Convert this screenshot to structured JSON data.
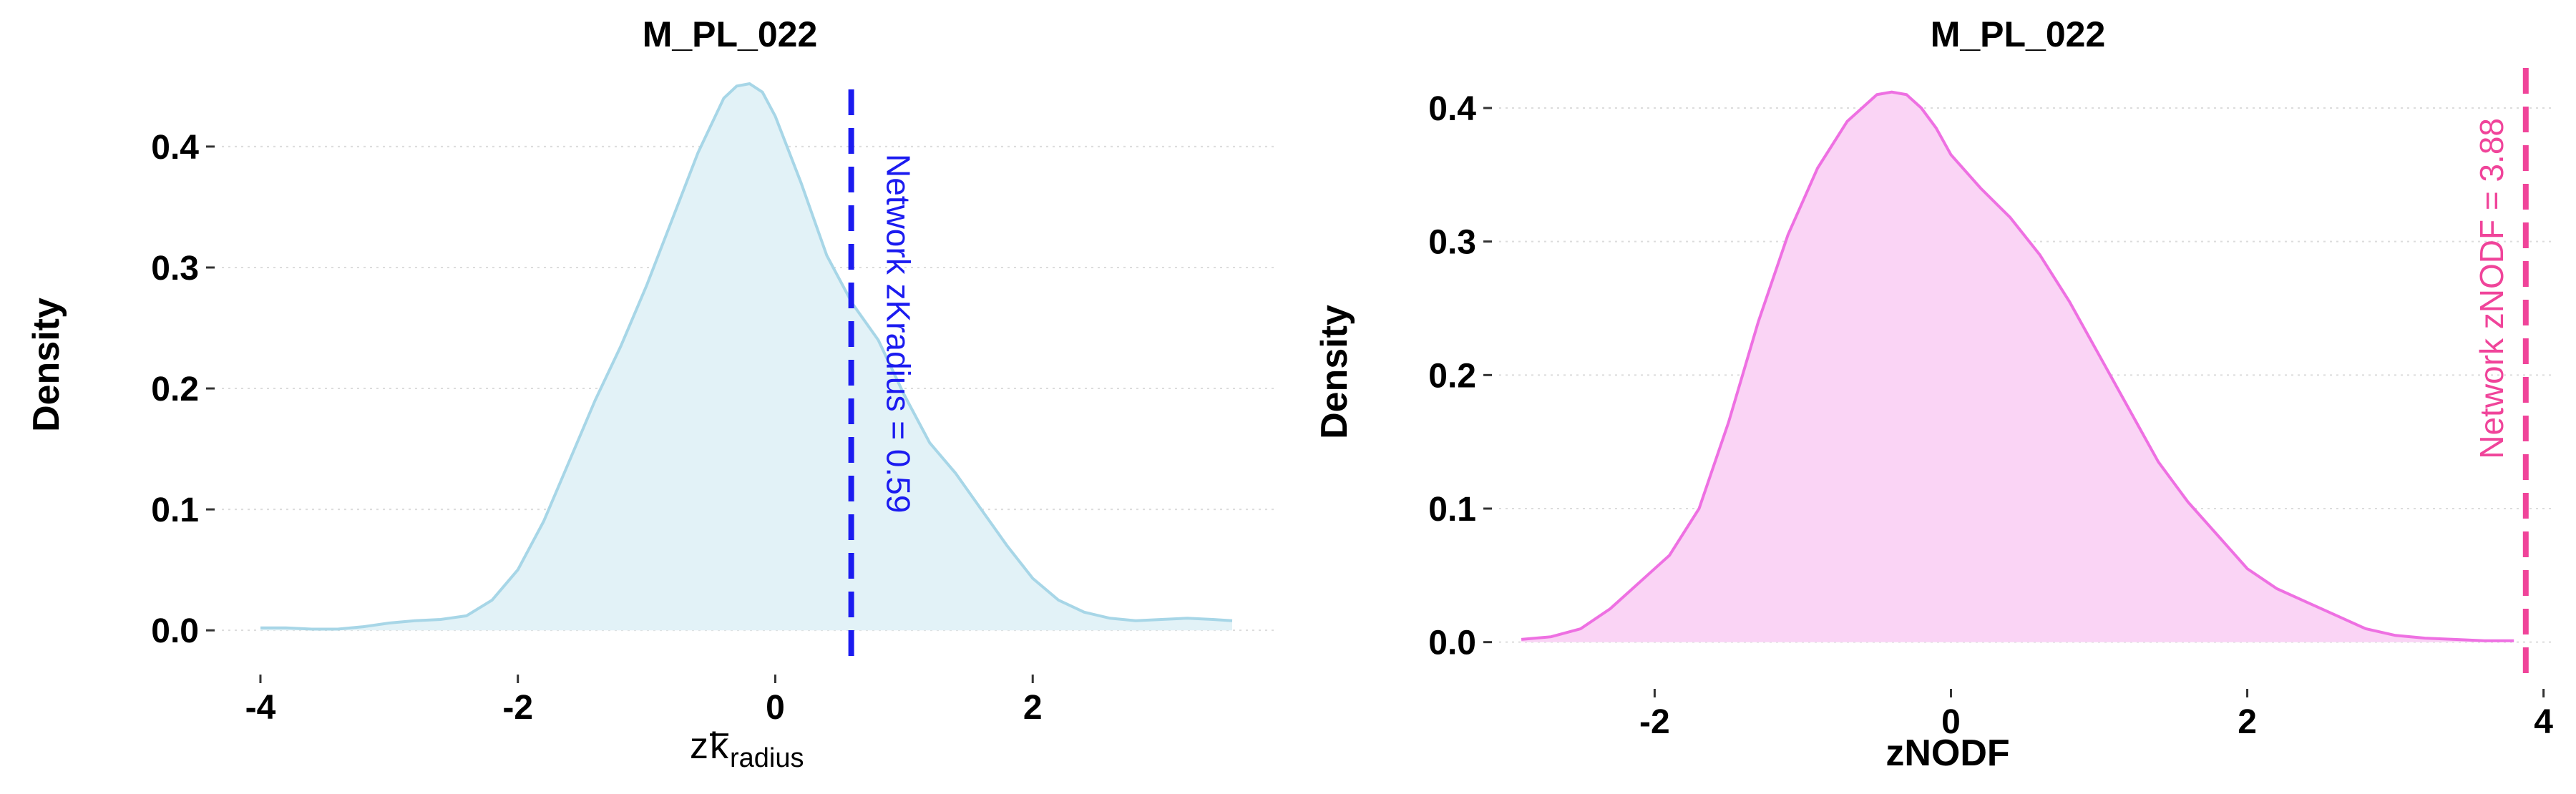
{
  "chart_data": [
    {
      "type": "area",
      "title": "M_PL_022",
      "ylabel": "Density",
      "xlabel": {
        "main": "z ",
        "overbar": "k",
        "subscript": "radius"
      },
      "xlim": [
        -4.3,
        3.9
      ],
      "ylim": [
        -0.02,
        0.465
      ],
      "xticks": [
        -4,
        -2,
        0,
        2
      ],
      "yticks": [
        0.0,
        0.1,
        0.2,
        0.3,
        0.4
      ],
      "x": [
        -4.0,
        -3.8,
        -3.6,
        -3.4,
        -3.2,
        -3.0,
        -2.8,
        -2.6,
        -2.4,
        -2.2,
        -2.0,
        -1.8,
        -1.6,
        -1.4,
        -1.2,
        -1.0,
        -0.8,
        -0.6,
        -0.4,
        -0.3,
        -0.2,
        -0.1,
        0.0,
        0.2,
        0.4,
        0.6,
        0.8,
        1.0,
        1.2,
        1.4,
        1.6,
        1.8,
        2.0,
        2.2,
        2.4,
        2.6,
        2.8,
        3.0,
        3.2,
        3.4,
        3.55
      ],
      "y": [
        0.002,
        0.002,
        0.001,
        0.001,
        0.003,
        0.006,
        0.008,
        0.009,
        0.012,
        0.025,
        0.05,
        0.09,
        0.14,
        0.19,
        0.235,
        0.285,
        0.34,
        0.395,
        0.44,
        0.45,
        0.452,
        0.445,
        0.425,
        0.37,
        0.31,
        0.27,
        0.24,
        0.195,
        0.155,
        0.13,
        0.1,
        0.07,
        0.043,
        0.025,
        0.015,
        0.01,
        0.008,
        0.009,
        0.01,
        0.009,
        0.008
      ],
      "fill_color": "#e2f2f7",
      "line_color": "#a7d6e7",
      "vline": {
        "x": 0.59,
        "color": "#1b1bf0",
        "label": "Network zKradius = 0.59"
      },
      "grid": "horizontal dotted"
    },
    {
      "type": "area",
      "title": "M_PL_022",
      "ylabel": "Density",
      "xlabel": "zNODF",
      "xlim": [
        -3.05,
        4.05
      ],
      "ylim": [
        -0.02,
        0.43
      ],
      "xticks": [
        -2,
        0,
        2,
        4
      ],
      "yticks": [
        0.0,
        0.1,
        0.2,
        0.3,
        0.4
      ],
      "x": [
        -2.9,
        -2.7,
        -2.5,
        -2.3,
        -2.1,
        -1.9,
        -1.7,
        -1.5,
        -1.3,
        -1.1,
        -0.9,
        -0.7,
        -0.5,
        -0.4,
        -0.3,
        -0.2,
        -0.1,
        0.0,
        0.2,
        0.4,
        0.6,
        0.8,
        1.0,
        1.2,
        1.4,
        1.6,
        1.8,
        2.0,
        2.2,
        2.4,
        2.6,
        2.8,
        3.0,
        3.2,
        3.4,
        3.6,
        3.8
      ],
      "y": [
        0.002,
        0.004,
        0.01,
        0.025,
        0.045,
        0.065,
        0.1,
        0.165,
        0.24,
        0.305,
        0.355,
        0.39,
        0.41,
        0.412,
        0.41,
        0.4,
        0.385,
        0.365,
        0.34,
        0.318,
        0.29,
        0.255,
        0.215,
        0.175,
        0.135,
        0.105,
        0.08,
        0.055,
        0.04,
        0.03,
        0.02,
        0.01,
        0.005,
        0.003,
        0.002,
        0.001,
        0.001
      ],
      "fill_color": "#fad4f5",
      "line_color": "#ee70e2",
      "vline": {
        "x": 3.88,
        "color": "#f0449a",
        "label": "Network zNODF = 3.88"
      },
      "grid": "horizontal dotted"
    }
  ]
}
